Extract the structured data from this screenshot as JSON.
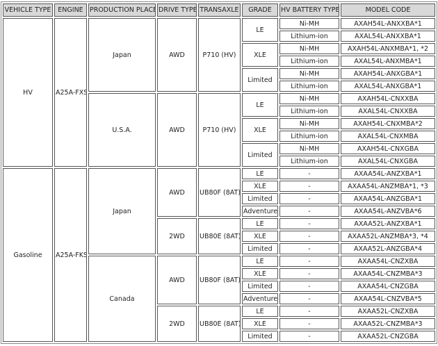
{
  "headers": [
    "VEHICLE TYPE",
    "ENGINE",
    "PRODUCTION PLACE",
    "DRIVE TYPE",
    "TRANSAXLE",
    "GRADE",
    "HV BATTERY TYPE",
    "MODEL CODE"
  ],
  "vehicle_types": [
    {
      "name": "HV",
      "engine": "A25A-FXS",
      "places": [
        {
          "name": "Japan",
          "drives": [
            {
              "drive": "AWD",
              "transaxle": "P710 (HV)",
              "grades": [
                {
                  "grade": "LE",
                  "variants": [
                    {
                      "battery": "Ni-MH",
                      "model": "AXAH54L-ANXXBA*1"
                    },
                    {
                      "battery": "Lithium-ion",
                      "model": "AXAL54L-ANXXBA*1"
                    }
                  ]
                },
                {
                  "grade": "XLE",
                  "variants": [
                    {
                      "battery": "Ni-MH",
                      "model": "AXAH54L-ANXMBA*1, *2"
                    },
                    {
                      "battery": "Lithium-ion",
                      "model": "AXAL54L-ANXMBA*1"
                    }
                  ]
                },
                {
                  "grade": "Limited",
                  "variants": [
                    {
                      "battery": "Ni-MH",
                      "model": "AXAH54L-ANXGBA*1"
                    },
                    {
                      "battery": "Lithium-ion",
                      "model": "AXAL54L-ANXGBA*1"
                    }
                  ]
                }
              ]
            }
          ]
        },
        {
          "name": "U.S.A.",
          "drives": [
            {
              "drive": "AWD",
              "transaxle": "P710 (HV)",
              "grades": [
                {
                  "grade": "LE",
                  "variants": [
                    {
                      "battery": "Ni-MH",
                      "model": "AXAH54L-CNXXBA"
                    },
                    {
                      "battery": "Lithium-ion",
                      "model": "AXAL54L-CNXXBA"
                    }
                  ]
                },
                {
                  "grade": "XLE",
                  "variants": [
                    {
                      "battery": "Ni-MH",
                      "model": "AXAH54L-CNXMBA*2"
                    },
                    {
                      "battery": "Lithium-ion",
                      "model": "AXAL54L-CNXMBA"
                    }
                  ]
                },
                {
                  "grade": "Limited",
                  "variants": [
                    {
                      "battery": "Ni-MH",
                      "model": "AXAH54L-CNXGBA"
                    },
                    {
                      "battery": "Lithium-ion",
                      "model": "AXAL54L-CNXGBA"
                    }
                  ]
                }
              ]
            }
          ]
        }
      ]
    },
    {
      "name": "Gasoline",
      "engine": "A25A-FKS",
      "places": [
        {
          "name": "Japan",
          "drives": [
            {
              "drive": "AWD",
              "transaxle": "UB80F (8AT)",
              "grades": [
                {
                  "grade": "LE",
                  "variants": [
                    {
                      "battery": "-",
                      "model": "AXAA54L-ANZXBA*1"
                    }
                  ]
                },
                {
                  "grade": "XLE",
                  "variants": [
                    {
                      "battery": "-",
                      "model": "AXAA54L-ANZMBA*1, *3"
                    }
                  ]
                },
                {
                  "grade": "Limited",
                  "variants": [
                    {
                      "battery": "-",
                      "model": "AXAA54L-ANZGBA*1"
                    }
                  ]
                },
                {
                  "grade": "Adventure",
                  "variants": [
                    {
                      "battery": "-",
                      "model": "AXAA54L-ANZVBA*6"
                    }
                  ]
                }
              ]
            },
            {
              "drive": "2WD",
              "transaxle": "UB80E (8AT)",
              "grades": [
                {
                  "grade": "LE",
                  "variants": [
                    {
                      "battery": "-",
                      "model": "AXAA52L-ANZXBA*1"
                    }
                  ]
                },
                {
                  "grade": "XLE",
                  "variants": [
                    {
                      "battery": "-",
                      "model": "AXAA52L-ANZMBA*3, *4"
                    }
                  ]
                },
                {
                  "grade": "Limited",
                  "variants": [
                    {
                      "battery": "-",
                      "model": "AXAA52L-ANZGBA*4"
                    }
                  ]
                }
              ]
            }
          ]
        },
        {
          "name": "Canada",
          "drives": [
            {
              "drive": "AWD",
              "transaxle": "UB80F (8AT)",
              "grades": [
                {
                  "grade": "LE",
                  "variants": [
                    {
                      "battery": "-",
                      "model": "AXAA54L-CNZXBA"
                    }
                  ]
                },
                {
                  "grade": "XLE",
                  "variants": [
                    {
                      "battery": "-",
                      "model": "AXAA54L-CNZMBA*3"
                    }
                  ]
                },
                {
                  "grade": "Limited",
                  "variants": [
                    {
                      "battery": "-",
                      "model": "AXAA54L-CNZGBA"
                    }
                  ]
                },
                {
                  "grade": "Adventure",
                  "variants": [
                    {
                      "battery": "-",
                      "model": "AXAA54L-CNZVBA*5"
                    }
                  ]
                }
              ]
            },
            {
              "drive": "2WD",
              "transaxle": "UB80E (8AT)",
              "grades": [
                {
                  "grade": "LE",
                  "variants": [
                    {
                      "battery": "-",
                      "model": "AXAA52L-CNZXBA"
                    }
                  ]
                },
                {
                  "grade": "XLE",
                  "variants": [
                    {
                      "battery": "-",
                      "model": "AXAA52L-CNZMBA*3"
                    }
                  ]
                },
                {
                  "grade": "Limited",
                  "variants": [
                    {
                      "battery": "-",
                      "model": "AXAA52L-CNZGBA"
                    }
                  ]
                }
              ]
            }
          ]
        }
      ]
    }
  ]
}
